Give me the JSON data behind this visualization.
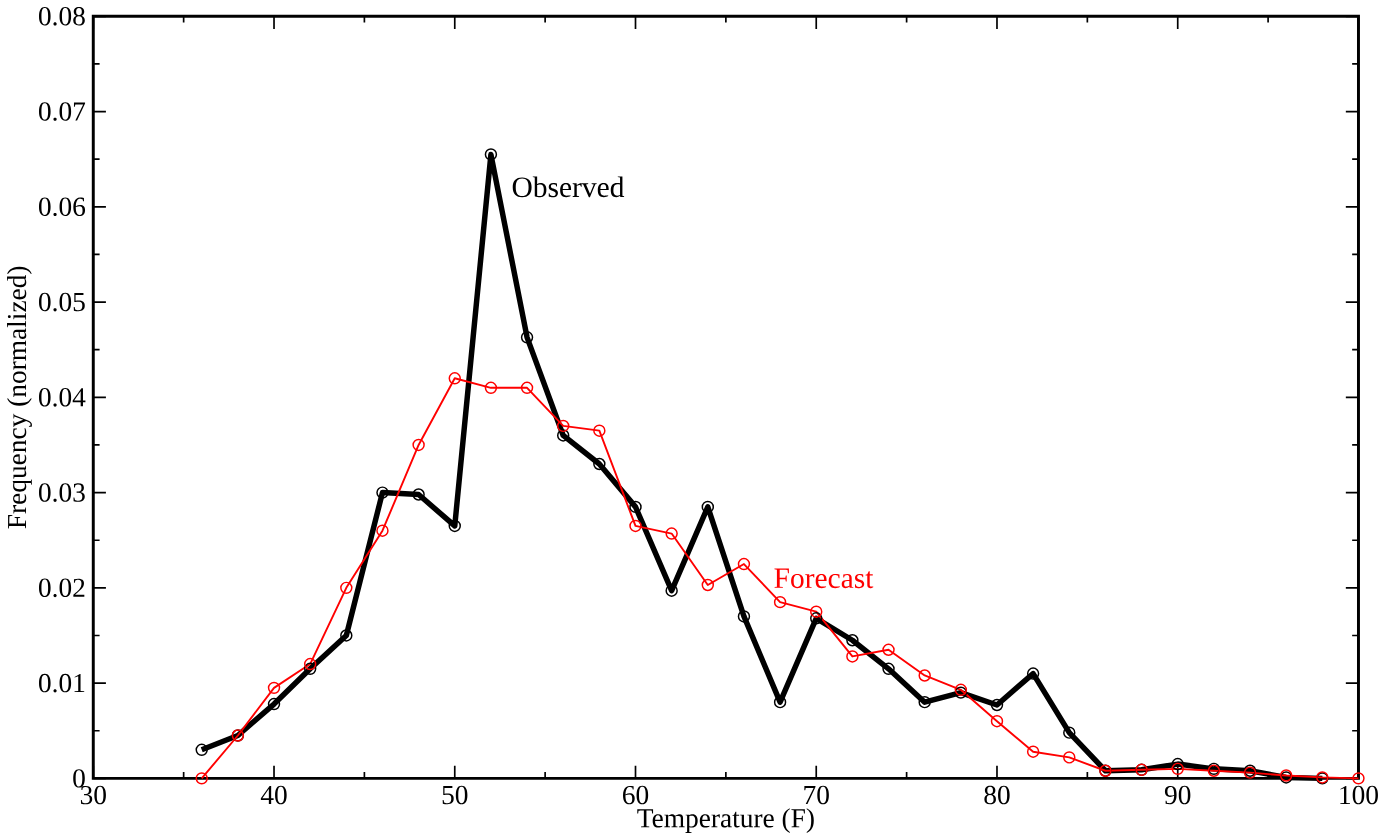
{
  "chart_data": {
    "type": "line",
    "xlabel": "Temperature (F)",
    "ylabel": "Frequency (normalized)",
    "x": [
      36,
      38,
      40,
      42,
      44,
      46,
      48,
      50,
      52,
      54,
      56,
      58,
      60,
      62,
      64,
      66,
      68,
      70,
      72,
      74,
      76,
      78,
      80,
      82,
      84,
      86,
      88,
      90,
      92,
      94,
      96,
      98,
      100
    ],
    "series": [
      {
        "color": "#000000",
        "x": [
          36,
          38,
          40,
          42,
          44,
          46,
          48,
          50,
          52,
          54,
          56,
          58,
          60,
          62,
          64,
          66,
          68,
          70,
          72,
          74,
          76,
          78,
          80,
          82,
          84,
          86,
          88,
          90,
          92,
          94,
          96,
          98
        ],
        "values": [
          0.003,
          0.0045,
          0.0078,
          0.0115,
          0.015,
          0.03,
          0.0298,
          0.0265,
          0.0655,
          0.0463,
          0.036,
          0.033,
          0.0285,
          0.0197,
          0.0285,
          0.017,
          0.008,
          0.0168,
          0.0145,
          0.0115,
          0.008,
          0.009,
          0.0077,
          0.011,
          0.0048,
          0.0008,
          0.0009,
          0.0015,
          0.001,
          0.0008,
          0.0001,
          0.0
        ]
      },
      {
        "color": "#ff0000",
        "values": [
          0.0,
          0.0045,
          0.0095,
          0.012,
          0.02,
          0.026,
          0.035,
          0.042,
          0.041,
          0.041,
          0.037,
          0.0365,
          0.0265,
          0.0257,
          0.0203,
          0.0225,
          0.0185,
          0.0175,
          0.0128,
          0.0135,
          0.0108,
          0.0093,
          0.006,
          0.0028,
          0.0022,
          0.0008,
          0.0009,
          0.001,
          0.0008,
          0.0006,
          0.0003,
          0.0001,
          0.0
        ]
      }
    ],
    "annotations": [
      {
        "text": "Observed",
        "x": 53,
        "y": 0.0621
      },
      {
        "text": "Forecast",
        "x": 67.5,
        "y": 0.021
      }
    ],
    "xlim": [
      30,
      100
    ],
    "ylim": [
      0,
      0.08
    ],
    "xticks": [
      30,
      40,
      50,
      60,
      70,
      80,
      90,
      100
    ],
    "yticks": [
      0,
      0.01,
      0.02,
      0.03,
      0.04,
      0.05,
      0.06,
      0.07,
      0.08
    ],
    "grid": false,
    "marker": "circle",
    "line_style": "solid"
  }
}
